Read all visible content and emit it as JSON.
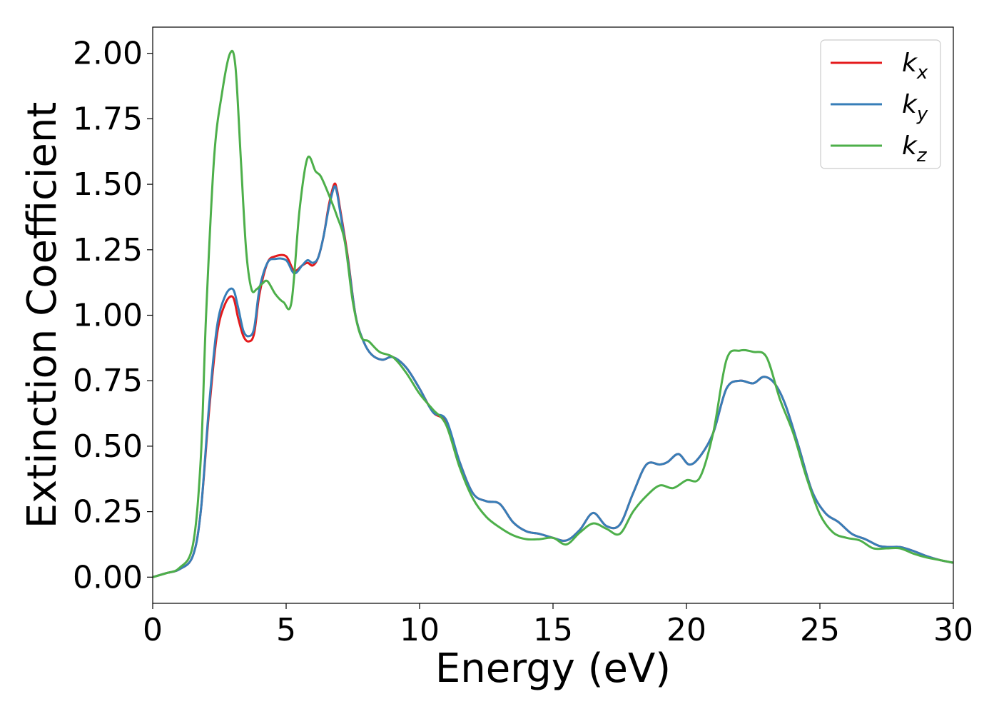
{
  "chart_data": {
    "type": "line",
    "title": "",
    "xlabel": "Energy (eV)",
    "ylabel": "Extinction Coefficient",
    "xlim": [
      0,
      30
    ],
    "ylim": [
      -0.1,
      2.1
    ],
    "grid": false,
    "legend_placement": "top-right",
    "xticks": [
      0,
      5,
      10,
      15,
      20,
      25,
      30
    ],
    "xtick_labels": [
      "0",
      "5",
      "10",
      "15",
      "20",
      "25",
      "30"
    ],
    "yticks": [
      0.0,
      0.25,
      0.5,
      0.75,
      1.0,
      1.25,
      1.5,
      1.75,
      2.0
    ],
    "ytick_labels": [
      "0.00",
      "0.25",
      "0.50",
      "0.75",
      "1.00",
      "1.25",
      "1.50",
      "1.75",
      "2.00"
    ],
    "series": [
      {
        "name": "k_x",
        "legend_main": "k",
        "legend_sub": "x",
        "color": "#e41a1c",
        "x": [
          0,
          0.5,
          1,
          1.5,
          1.8,
          2.1,
          2.4,
          2.7,
          3.0,
          3.2,
          3.4,
          3.6,
          3.8,
          4.0,
          4.3,
          4.6,
          5.0,
          5.3,
          5.6,
          5.8,
          6.0,
          6.2,
          6.4,
          6.6,
          6.8,
          6.9,
          7.0,
          7.3,
          7.6,
          7.9,
          8.2,
          8.6,
          9.0,
          9.5,
          10.0,
          10.5,
          11.0,
          11.5,
          12.0,
          12.5,
          13.0,
          13.5,
          14.0,
          14.5,
          15.0,
          15.5,
          16.0,
          16.5,
          17.0,
          17.5,
          18.0,
          18.5,
          19.0,
          19.3,
          19.7,
          20.1,
          20.5,
          21.0,
          21.5,
          22.0,
          22.5,
          22.9,
          23.3,
          23.7,
          24.2,
          24.7,
          25.2,
          25.7,
          26.2,
          26.7,
          27.2,
          27.6,
          28.0,
          28.5,
          29.0,
          29.5,
          30.0
        ],
        "values": [
          0.0,
          0.015,
          0.03,
          0.08,
          0.25,
          0.62,
          0.92,
          1.04,
          1.07,
          0.99,
          0.92,
          0.9,
          0.93,
          1.08,
          1.2,
          1.225,
          1.225,
          1.17,
          1.19,
          1.2,
          1.19,
          1.22,
          1.3,
          1.42,
          1.5,
          1.48,
          1.42,
          1.23,
          1.0,
          0.9,
          0.85,
          0.83,
          0.84,
          0.8,
          0.72,
          0.63,
          0.59,
          0.44,
          0.32,
          0.29,
          0.28,
          0.21,
          0.175,
          0.165,
          0.15,
          0.14,
          0.18,
          0.245,
          0.195,
          0.2,
          0.32,
          0.43,
          0.43,
          0.44,
          0.47,
          0.43,
          0.46,
          0.55,
          0.72,
          0.75,
          0.74,
          0.765,
          0.74,
          0.66,
          0.5,
          0.33,
          0.245,
          0.21,
          0.165,
          0.145,
          0.12,
          0.115,
          0.115,
          0.1,
          0.08,
          0.065,
          0.055
        ]
      },
      {
        "name": "k_y",
        "legend_main": "k",
        "legend_sub": "y",
        "color": "#377eb8",
        "x": [
          0,
          0.5,
          1,
          1.5,
          1.8,
          2.1,
          2.4,
          2.7,
          3.0,
          3.2,
          3.4,
          3.6,
          3.8,
          4.0,
          4.3,
          4.6,
          5.0,
          5.3,
          5.6,
          5.8,
          6.0,
          6.2,
          6.4,
          6.6,
          6.8,
          6.9,
          7.0,
          7.3,
          7.6,
          7.9,
          8.2,
          8.6,
          9.0,
          9.5,
          10.0,
          10.5,
          11.0,
          11.5,
          12.0,
          12.5,
          13.0,
          13.5,
          14.0,
          14.5,
          15.0,
          15.5,
          16.0,
          16.5,
          17.0,
          17.5,
          18.0,
          18.5,
          19.0,
          19.3,
          19.7,
          20.1,
          20.5,
          21.0,
          21.5,
          22.0,
          22.5,
          22.9,
          23.3,
          23.7,
          24.2,
          24.7,
          25.2,
          25.7,
          26.2,
          26.7,
          27.2,
          27.6,
          28.0,
          28.5,
          29.0,
          29.5,
          30.0
        ],
        "values": [
          0.0,
          0.015,
          0.03,
          0.08,
          0.25,
          0.64,
          0.95,
          1.07,
          1.1,
          1.03,
          0.94,
          0.92,
          0.95,
          1.1,
          1.2,
          1.215,
          1.21,
          1.16,
          1.19,
          1.21,
          1.2,
          1.22,
          1.3,
          1.41,
          1.49,
          1.47,
          1.41,
          1.22,
          1.0,
          0.9,
          0.85,
          0.83,
          0.84,
          0.8,
          0.72,
          0.63,
          0.6,
          0.44,
          0.32,
          0.29,
          0.28,
          0.21,
          0.175,
          0.165,
          0.15,
          0.14,
          0.18,
          0.245,
          0.195,
          0.2,
          0.32,
          0.43,
          0.43,
          0.44,
          0.47,
          0.43,
          0.46,
          0.55,
          0.72,
          0.75,
          0.74,
          0.765,
          0.74,
          0.66,
          0.5,
          0.33,
          0.245,
          0.21,
          0.165,
          0.145,
          0.12,
          0.115,
          0.115,
          0.1,
          0.08,
          0.065,
          0.055
        ]
      },
      {
        "name": "k_z",
        "legend_main": "k",
        "legend_sub": "z",
        "color": "#4daf4a",
        "x": [
          0,
          0.5,
          1,
          1.5,
          1.8,
          2.0,
          2.3,
          2.6,
          2.9,
          3.1,
          3.3,
          3.5,
          3.7,
          3.9,
          4.1,
          4.3,
          4.6,
          4.9,
          5.2,
          5.5,
          5.8,
          6.1,
          6.3,
          6.6,
          6.9,
          7.2,
          7.5,
          7.8,
          8.1,
          8.5,
          9.0,
          9.5,
          10.0,
          10.5,
          11.0,
          11.5,
          12.0,
          12.5,
          13.0,
          13.5,
          14.0,
          14.5,
          15.0,
          15.5,
          16.0,
          16.5,
          17.0,
          17.5,
          18.0,
          18.5,
          19.0,
          19.5,
          20.0,
          20.5,
          21.0,
          21.5,
          22.0,
          22.5,
          23.0,
          23.5,
          24.0,
          24.5,
          25.0,
          25.5,
          26.0,
          26.5,
          27.0,
          27.5,
          28.0,
          28.5,
          29.0,
          29.5,
          30.0
        ],
        "values": [
          0.0,
          0.015,
          0.035,
          0.12,
          0.45,
          1.0,
          1.6,
          1.85,
          2.0,
          1.95,
          1.6,
          1.25,
          1.1,
          1.1,
          1.12,
          1.13,
          1.08,
          1.05,
          1.05,
          1.4,
          1.6,
          1.55,
          1.53,
          1.46,
          1.38,
          1.28,
          1.05,
          0.92,
          0.9,
          0.86,
          0.84,
          0.78,
          0.7,
          0.64,
          0.58,
          0.42,
          0.3,
          0.23,
          0.19,
          0.16,
          0.145,
          0.145,
          0.15,
          0.125,
          0.17,
          0.205,
          0.185,
          0.165,
          0.25,
          0.31,
          0.35,
          0.34,
          0.37,
          0.38,
          0.55,
          0.83,
          0.865,
          0.86,
          0.84,
          0.68,
          0.55,
          0.38,
          0.24,
          0.17,
          0.15,
          0.14,
          0.11,
          0.11,
          0.11,
          0.09,
          0.075,
          0.065,
          0.055
        ]
      }
    ]
  }
}
